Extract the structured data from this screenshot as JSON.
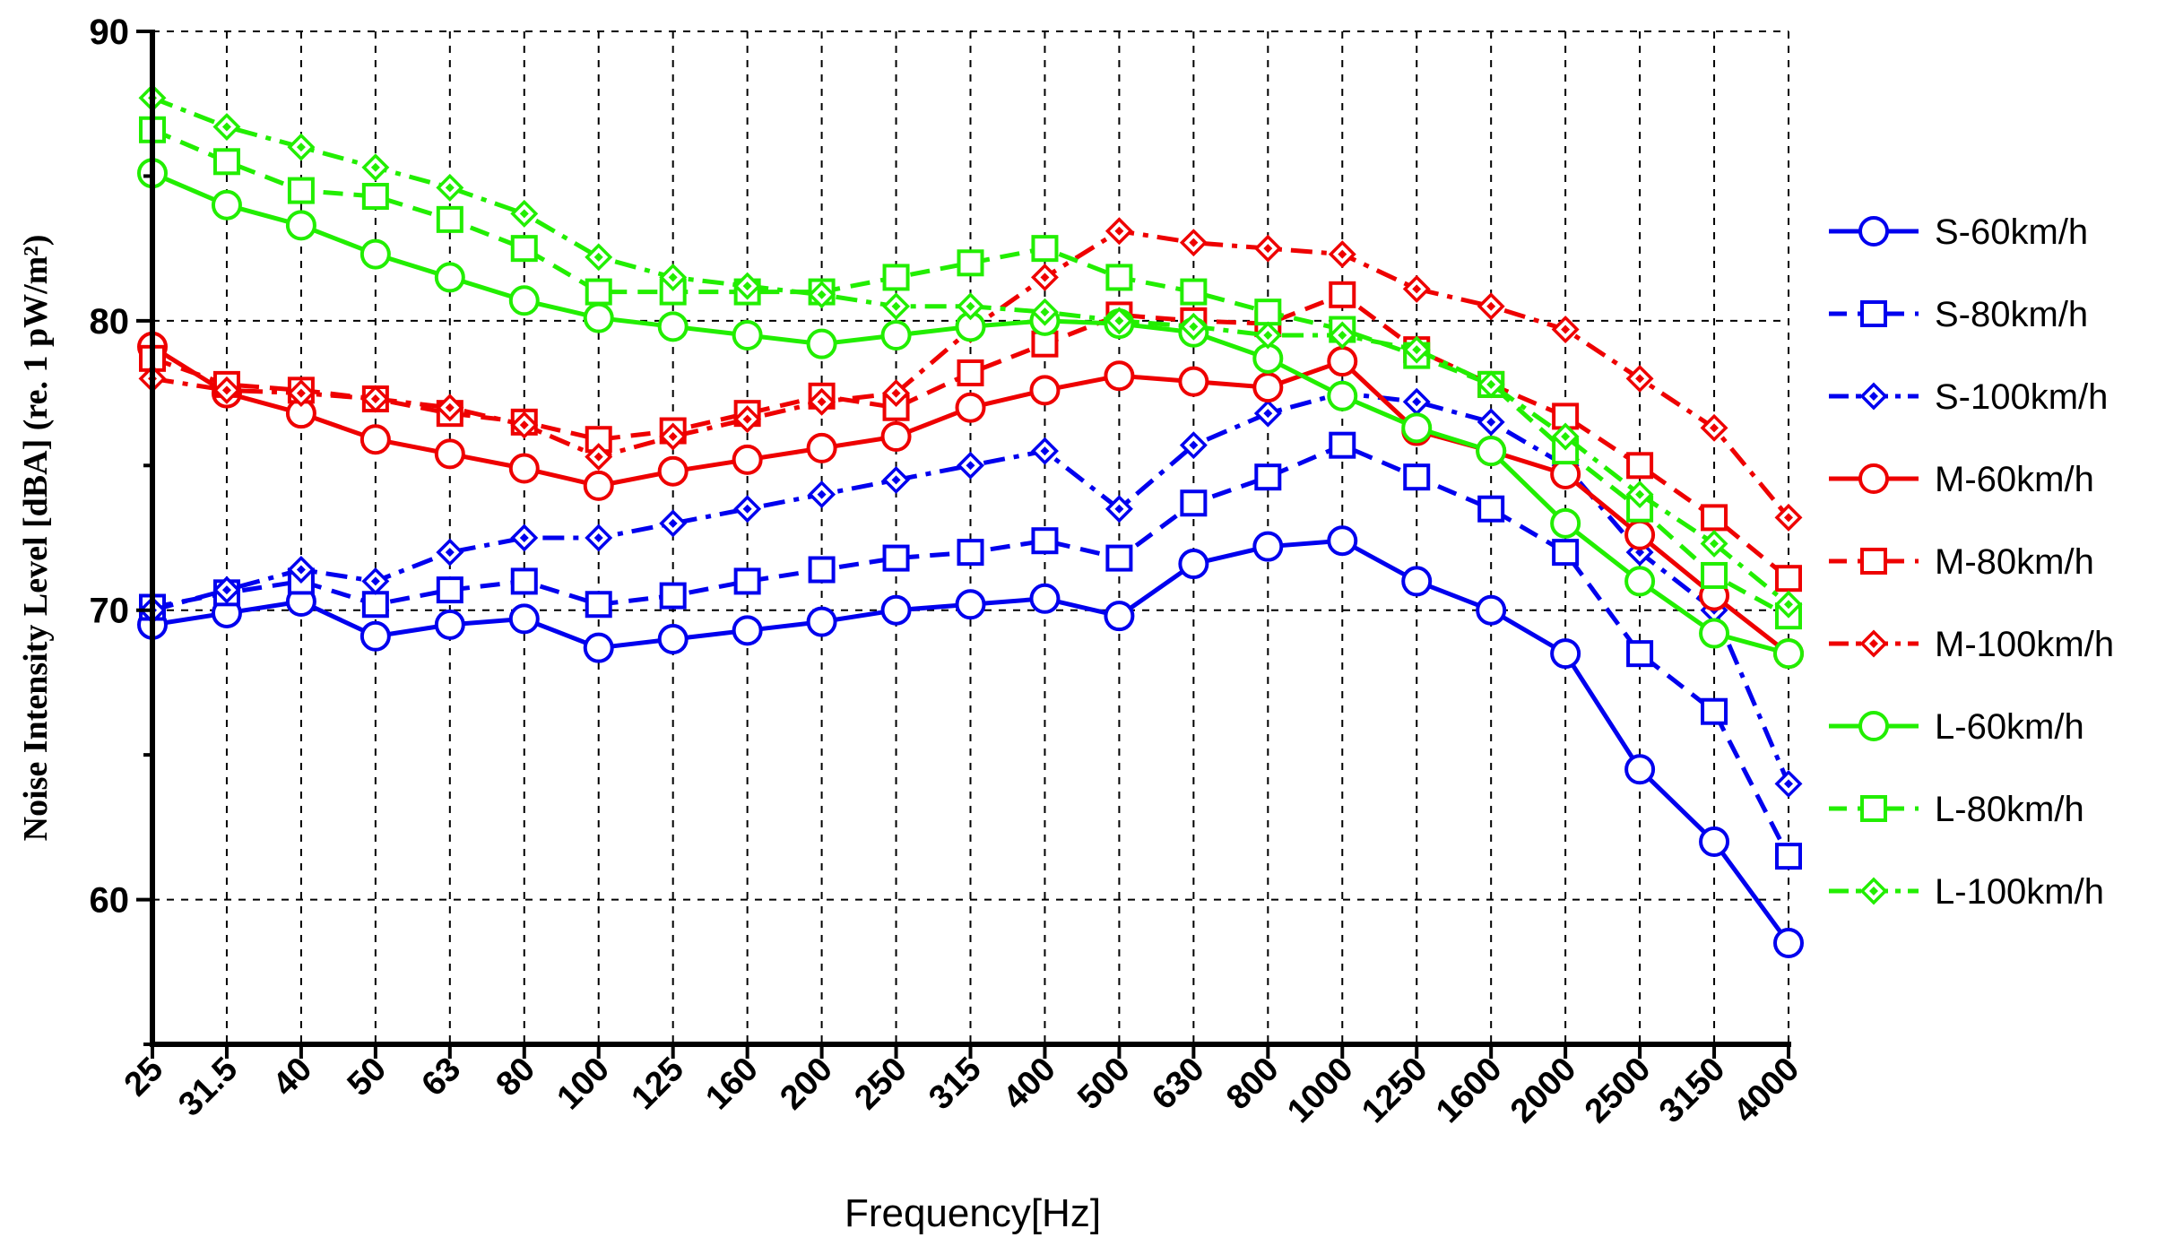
{
  "chart_data": {
    "type": "line",
    "title": "",
    "xlabel": "Frequency[Hz]",
    "ylabel": "Noise Intensity Level  [dBA] (re. 1 pW/m²)",
    "categories": [
      "25",
      "31.5",
      "40",
      "50",
      "63",
      "80",
      "100",
      "125",
      "160",
      "200",
      "250",
      "315",
      "400",
      "500",
      "630",
      "800",
      "1000",
      "1250",
      "1600",
      "2000",
      "2500",
      "3150",
      "4000"
    ],
    "yticks": [
      "60",
      "70",
      "80",
      "90"
    ],
    "ylim": [
      55,
      90
    ],
    "grid": true,
    "legend_position": "right",
    "series": [
      {
        "name": "S-60km/h",
        "color": "#0000ee",
        "dash": "solid",
        "marker": "circle",
        "values": [
          69.5,
          69.9,
          70.3,
          69.1,
          69.5,
          69.7,
          68.7,
          69.0,
          69.3,
          69.6,
          70.0,
          70.2,
          70.4,
          69.8,
          71.6,
          72.2,
          72.4,
          71.0,
          70.0,
          68.5,
          64.5,
          62.0,
          58.5
        ]
      },
      {
        "name": "S-80km/h",
        "color": "#0000ee",
        "dash": "dashed",
        "marker": "square",
        "values": [
          70.1,
          70.6,
          71.0,
          70.2,
          70.7,
          71.0,
          70.2,
          70.5,
          71.0,
          71.4,
          71.8,
          72.0,
          72.4,
          71.8,
          73.7,
          74.6,
          75.7,
          74.6,
          73.5,
          72.0,
          68.5,
          66.5,
          61.5
        ]
      },
      {
        "name": "S-100km/h",
        "color": "#0000ee",
        "dash": "dashdot",
        "marker": "diamond",
        "values": [
          70.0,
          70.7,
          71.4,
          71.0,
          72.0,
          72.5,
          72.5,
          73.0,
          73.5,
          74.0,
          74.5,
          75.0,
          75.5,
          73.5,
          75.7,
          76.8,
          77.5,
          77.2,
          76.5,
          75.0,
          72.0,
          70.0,
          64.0
        ]
      },
      {
        "name": "M-60km/h",
        "color": "#ee0000",
        "dash": "solid",
        "marker": "circle",
        "values": [
          79.1,
          77.5,
          76.8,
          75.9,
          75.4,
          74.9,
          74.3,
          74.8,
          75.2,
          75.6,
          76.0,
          77.0,
          77.6,
          78.1,
          77.9,
          77.7,
          78.6,
          76.2,
          75.5,
          74.7,
          72.6,
          70.5,
          68.5
        ]
      },
      {
        "name": "M-80km/h",
        "color": "#ee0000",
        "dash": "dashed",
        "marker": "square",
        "values": [
          78.7,
          77.8,
          77.6,
          77.3,
          76.8,
          76.5,
          75.9,
          76.2,
          76.8,
          77.4,
          77.0,
          78.2,
          79.2,
          80.2,
          80.0,
          79.9,
          80.9,
          79.0,
          77.8,
          76.7,
          75.0,
          73.2,
          71.1
        ]
      },
      {
        "name": "M-100km/h",
        "color": "#ee0000",
        "dash": "dashdot",
        "marker": "diamond",
        "values": [
          78.0,
          77.6,
          77.5,
          77.3,
          77.0,
          76.4,
          75.3,
          76.0,
          76.6,
          77.2,
          77.5,
          79.7,
          81.5,
          83.1,
          82.7,
          82.5,
          82.3,
          81.1,
          80.5,
          79.7,
          78.0,
          76.3,
          73.2
        ]
      },
      {
        "name": "L-60km/h",
        "color": "#22ee00",
        "dash": "solid",
        "marker": "circle",
        "values": [
          85.1,
          84.0,
          83.3,
          82.3,
          81.5,
          80.7,
          80.1,
          79.8,
          79.5,
          79.2,
          79.5,
          79.8,
          80.0,
          79.9,
          79.6,
          78.7,
          77.4,
          76.3,
          75.5,
          73.0,
          71.0,
          69.2,
          68.5
        ]
      },
      {
        "name": "L-80km/h",
        "color": "#22ee00",
        "dash": "dashed",
        "marker": "square",
        "values": [
          86.6,
          85.5,
          84.5,
          84.3,
          83.5,
          82.5,
          81.0,
          81.0,
          81.0,
          81.0,
          81.5,
          82.0,
          82.5,
          81.5,
          81.0,
          80.3,
          79.7,
          78.8,
          77.8,
          75.5,
          73.5,
          71.2,
          69.8
        ]
      },
      {
        "name": "L-100km/h",
        "color": "#22ee00",
        "dash": "dashdot",
        "marker": "diamond",
        "values": [
          87.7,
          86.7,
          86.0,
          85.3,
          84.6,
          83.7,
          82.2,
          81.5,
          81.2,
          80.9,
          80.5,
          80.5,
          80.3,
          80.0,
          79.8,
          79.5,
          79.5,
          79.0,
          77.8,
          76.0,
          74.0,
          72.3,
          70.2
        ]
      }
    ]
  }
}
